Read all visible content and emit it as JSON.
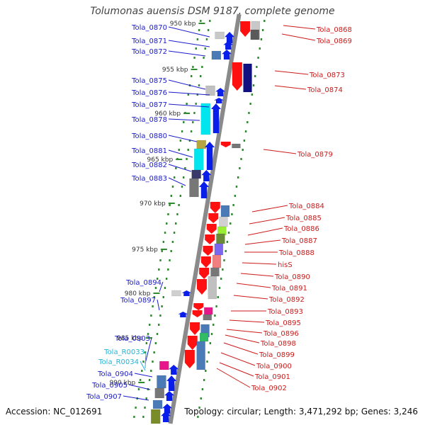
{
  "title": "Tolumonas auensis DSM 9187, complete genome",
  "accession": "Accession: NC_012691",
  "summary": "Topology: circular; Length: 3,471,292 bp; Genes: 3,246",
  "colors": {
    "forward_label": "#1a1acc",
    "reverse_label": "#cc1a1a",
    "rna_label": "#22b4d8",
    "backbone": "#8a8a8a",
    "tick": "#2e8b2e"
  },
  "ruler_ticks": [
    {
      "label": "950 kbp"
    },
    {
      "label": "955 kbp"
    },
    {
      "label": "960 kbp"
    },
    {
      "label": "965 kbp"
    },
    {
      "label": "970 kbp"
    },
    {
      "label": "975 kbp"
    },
    {
      "label": "980 kbp"
    },
    {
      "label": "985 kbp"
    },
    {
      "label": "990 kbp"
    }
  ],
  "left_labels": [
    {
      "text": "Tola_0870",
      "type": "gene"
    },
    {
      "text": "Tola_0871",
      "type": "gene"
    },
    {
      "text": "Tola_0872",
      "type": "gene"
    },
    {
      "text": "Tola_0875",
      "type": "gene"
    },
    {
      "text": "Tola_0876",
      "type": "gene"
    },
    {
      "text": "Tola_0877",
      "type": "gene"
    },
    {
      "text": "Tola_0878",
      "type": "gene"
    },
    {
      "text": "Tola_0880",
      "type": "gene"
    },
    {
      "text": "Tola_0881",
      "type": "gene"
    },
    {
      "text": "Tola_0882",
      "type": "gene"
    },
    {
      "text": "Tola_0883",
      "type": "gene"
    },
    {
      "text": "Tola_0894",
      "type": "gene"
    },
    {
      "text": "Tola_0897",
      "type": "gene"
    },
    {
      "text": "Tola_0903",
      "type": "gene"
    },
    {
      "text": "Tola_R0033",
      "type": "rna"
    },
    {
      "text": "Tola_R0034",
      "type": "rna"
    },
    {
      "text": "Tola_0904",
      "type": "gene"
    },
    {
      "text": "Tola_0905",
      "type": "gene"
    },
    {
      "text": "Tola_0907",
      "type": "gene"
    }
  ],
  "right_labels": [
    {
      "text": "Tola_0868"
    },
    {
      "text": "Tola_0869"
    },
    {
      "text": "Tola_0873"
    },
    {
      "text": "Tola_0874"
    },
    {
      "text": "Tola_0879"
    },
    {
      "text": "Tola_0884"
    },
    {
      "text": "Tola_0885"
    },
    {
      "text": "Tola_0886"
    },
    {
      "text": "Tola_0887"
    },
    {
      "text": "Tola_0888"
    },
    {
      "text": "hisS"
    },
    {
      "text": "Tola_0890"
    },
    {
      "text": "Tola_0891"
    },
    {
      "text": "Tola_0892"
    },
    {
      "text": "Tola_0893"
    },
    {
      "text": "Tola_0895"
    },
    {
      "text": "Tola_0896"
    },
    {
      "text": "Tola_0898"
    },
    {
      "text": "Tola_0899"
    },
    {
      "text": "Tola_0900"
    },
    {
      "text": "Tola_0901"
    },
    {
      "text": "Tola_0902"
    }
  ]
}
